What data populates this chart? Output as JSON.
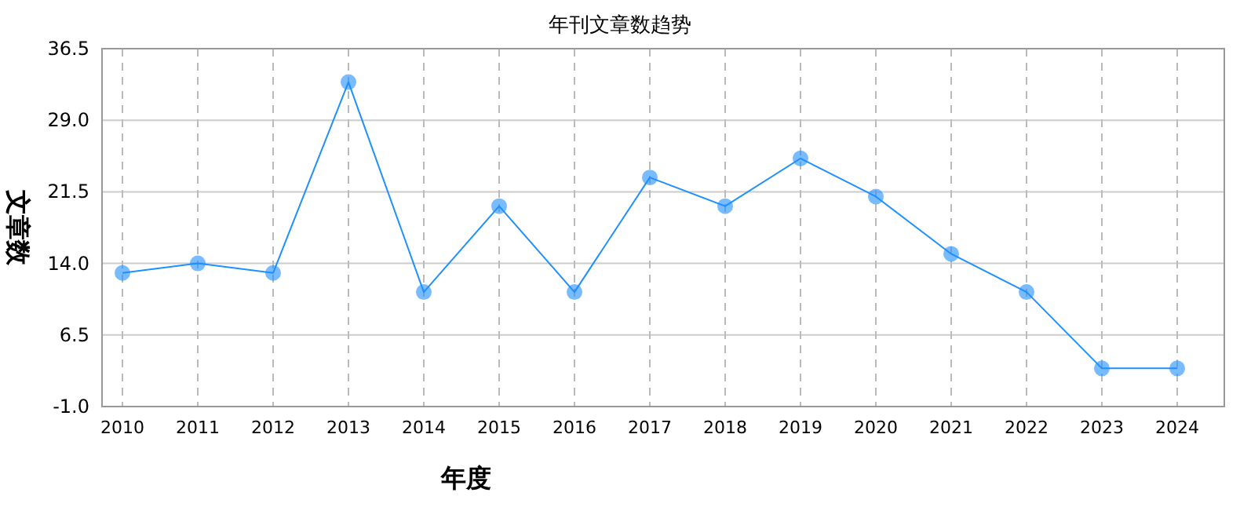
{
  "chart_data": {
    "type": "line",
    "title": "年刊文章数趋势",
    "xlabel": "年度",
    "ylabel": "文章数",
    "categories": [
      "2010",
      "2011",
      "2012",
      "2013",
      "2014",
      "2015",
      "2016",
      "2017",
      "2018",
      "2019",
      "2020",
      "2021",
      "2022",
      "2023",
      "2024"
    ],
    "series": [
      {
        "color": "#1e90ff",
        "values": [
          13,
          14,
          13,
          33,
          11,
          20,
          11,
          23,
          20,
          25,
          21,
          15,
          11,
          3,
          3
        ]
      }
    ],
    "ylim": [
      -1,
      36.5
    ],
    "yticks": [
      {
        "value": -1,
        "label": "-1.0"
      },
      {
        "value": 6.5,
        "label": "6.5"
      },
      {
        "value": 14,
        "label": "14.0"
      },
      {
        "value": 21.5,
        "label": "21.5"
      },
      {
        "value": 29,
        "label": "29.0"
      },
      {
        "value": 36.5,
        "label": "36.5"
      }
    ],
    "grid": true,
    "marker": "circle",
    "line_style": "solid"
  }
}
